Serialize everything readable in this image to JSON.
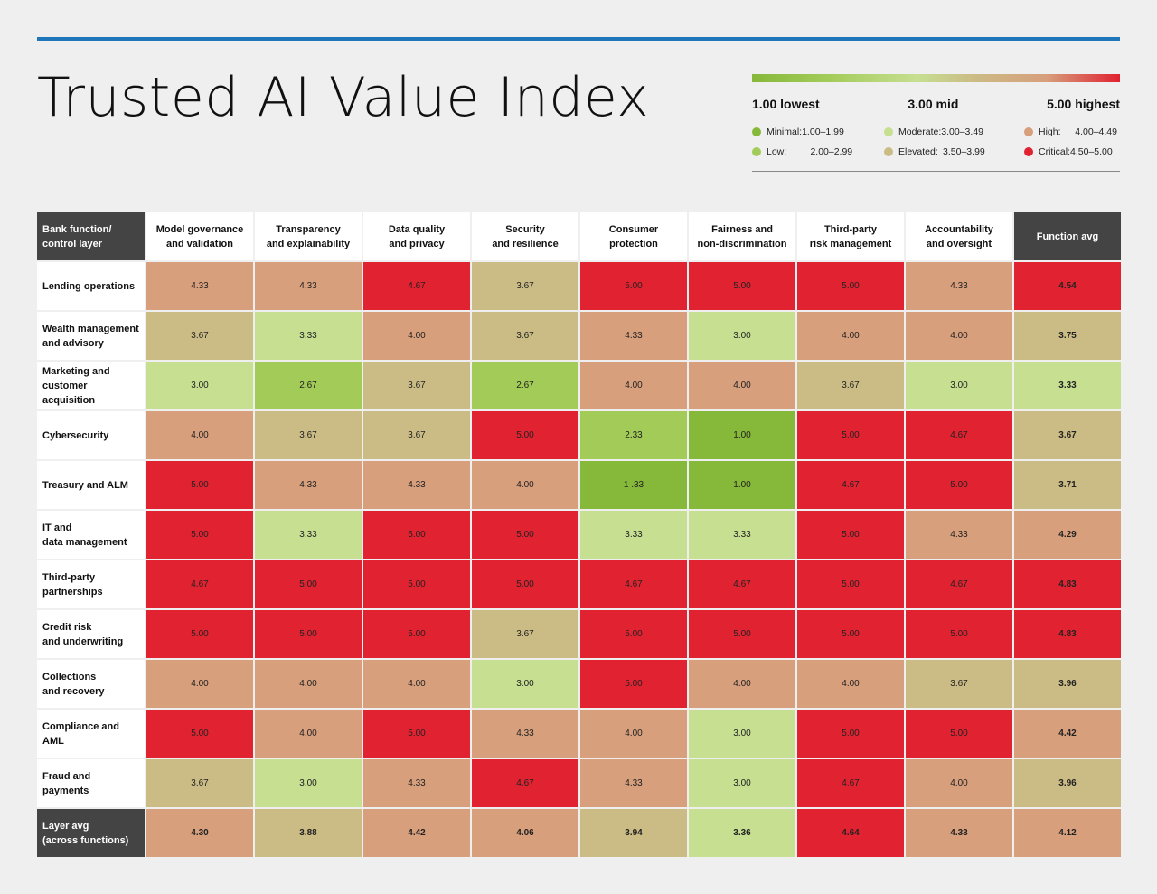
{
  "title": "Trusted AI Value Index",
  "colors": {
    "rule": "#1f77b9",
    "minimal": "#86b83a",
    "low": "#a2cb58",
    "moderate": "#c6df91",
    "elevated": "#cbbc85",
    "high": "#d79f7c",
    "critical": "#e02231"
  },
  "legend": {
    "scale_low": "1.00 lowest",
    "scale_mid": "3.00 mid",
    "scale_high": "5.00 highest",
    "items": [
      {
        "label": "Minimal:",
        "range": "1.00–1.99",
        "level": "minimal"
      },
      {
        "label": "Moderate:",
        "range": "3.00–3.49",
        "level": "moderate"
      },
      {
        "label": "High:",
        "range": "4.00–4.49",
        "level": "high"
      },
      {
        "label": "Low:",
        "range": "2.00–2.99",
        "level": "low"
      },
      {
        "label": "Elevated:",
        "range": "3.50–3.99",
        "level": "elevated"
      },
      {
        "label": "Critical:",
        "range": "4.50–5.00",
        "level": "critical"
      }
    ]
  },
  "chart_data": {
    "type": "heatmap",
    "title": "Trusted AI Value Index",
    "corner_label": [
      "Bank function/",
      "control layer"
    ],
    "columns": [
      [
        "Model governance",
        "and validation"
      ],
      [
        "Transparency",
        "and explainability"
      ],
      [
        "Data quality",
        "and privacy"
      ],
      [
        "Security",
        "and resilience"
      ],
      [
        "Consumer",
        "protection"
      ],
      [
        "Fairness and",
        "non-discrimination"
      ],
      [
        "Third-party",
        "risk management"
      ],
      [
        "Accountability",
        "and oversight"
      ],
      [
        "Function avg"
      ]
    ],
    "rows": [
      {
        "label": [
          "Lending operations"
        ],
        "values": [
          "4.33",
          "4.33",
          "4.67",
          "3.67",
          "5.00",
          "5.00",
          "5.00",
          "4.33",
          "4.54"
        ]
      },
      {
        "label": [
          "Wealth management",
          "and advisory"
        ],
        "values": [
          "3.67",
          "3.33",
          "4.00",
          "3.67",
          "4.33",
          "3.00",
          "4.00",
          "4.00",
          "3.75"
        ]
      },
      {
        "label": [
          "Marketing and",
          "customer acquisition"
        ],
        "values": [
          "3.00",
          "2.67",
          "3.67",
          "2.67",
          "4.00",
          "4.00",
          "3.67",
          "3.00",
          "3.33"
        ]
      },
      {
        "label": [
          "Cybersecurity"
        ],
        "values": [
          "4.00",
          "3.67",
          "3.67",
          "5.00",
          "2.33",
          "1.00",
          "5.00",
          "4.67",
          "3.67"
        ]
      },
      {
        "label": [
          "Treasury and ALM"
        ],
        "values": [
          "5.00",
          "4.33",
          "4.33",
          "4.00",
          "1 .33",
          "1.00",
          "4.67",
          "5.00",
          "3.71"
        ]
      },
      {
        "label": [
          "IT and",
          "data management"
        ],
        "values": [
          "5.00",
          "3.33",
          "5.00",
          "5.00",
          "3.33",
          "3.33",
          "5.00",
          "4.33",
          "4.29"
        ]
      },
      {
        "label": [
          "Third-party",
          "partnerships"
        ],
        "values": [
          "4.67",
          "5.00",
          "5.00",
          "5.00",
          "4.67",
          "4.67",
          "5.00",
          "4.67",
          "4.83"
        ]
      },
      {
        "label": [
          "Credit risk",
          "and underwriting"
        ],
        "values": [
          "5.00",
          "5.00",
          "5.00",
          "3.67",
          "5.00",
          "5.00",
          "5.00",
          "5.00",
          "4.83"
        ]
      },
      {
        "label": [
          "Collections",
          "and recovery"
        ],
        "values": [
          "4.00",
          "4.00",
          "4.00",
          "3.00",
          "5.00",
          "4.00",
          "4.00",
          "3.67",
          "3.96"
        ]
      },
      {
        "label": [
          "Compliance and AML"
        ],
        "values": [
          "5.00",
          "4.00",
          "5.00",
          "4.33",
          "4.00",
          "3.00",
          "5.00",
          "5.00",
          "4.42"
        ]
      },
      {
        "label": [
          "Fraud and payments"
        ],
        "values": [
          "3.67",
          "3.00",
          "4.33",
          "4.67",
          "4.33",
          "3.00",
          "4.67",
          "4.00",
          "3.96"
        ]
      },
      {
        "label": [
          "Layer avg",
          "(across functions)"
        ],
        "values": [
          "4.30",
          "3.88",
          "4.42",
          "4.06",
          "3.94",
          "3.36",
          "4.64",
          "4.33",
          "4.12"
        ]
      }
    ]
  }
}
